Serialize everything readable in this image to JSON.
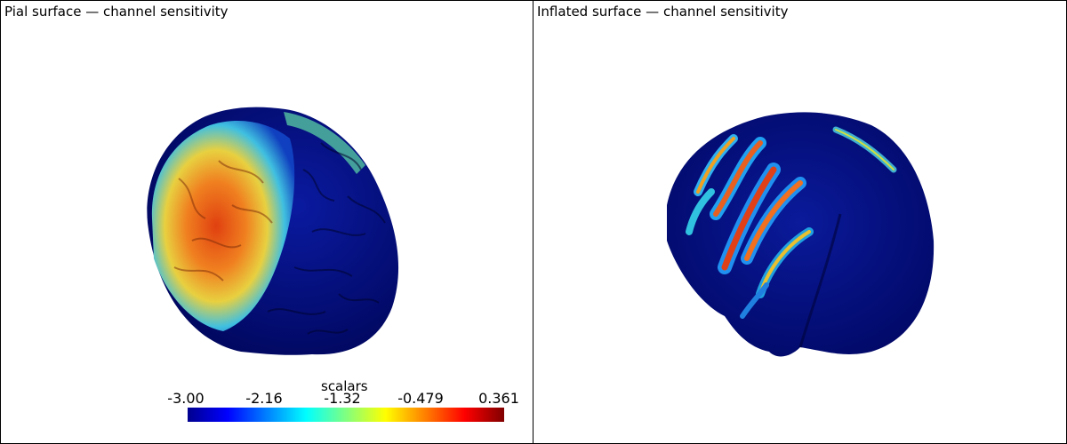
{
  "viewports": {
    "left": {
      "title": "Pial surface — channel sensitivity"
    },
    "right": {
      "title": "Inflated surface — channel sensitivity"
    }
  },
  "colorbar": {
    "title": "scalars",
    "ticks": [
      "-3.00",
      "-2.16",
      "-1.32",
      "-0.479",
      "0.361"
    ],
    "colormap": [
      "#00008f",
      "#0000ff",
      "#0080ff",
      "#00ffff",
      "#80ff80",
      "#ffff00",
      "#ff8000",
      "#ff0000",
      "#800000"
    ]
  },
  "colors": {
    "background": "#ffffff",
    "low_value": "#00008f",
    "high_value": "#800000"
  }
}
